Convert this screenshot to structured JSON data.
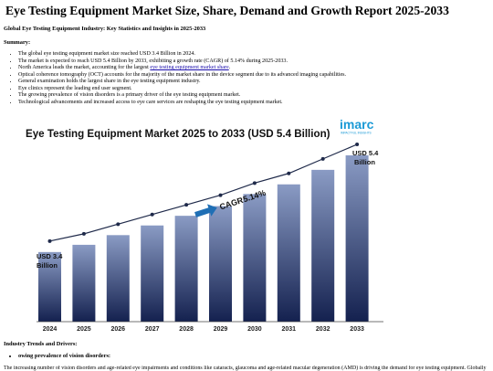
{
  "header": {
    "title": "Eye Testing Equipment Market Size, Share, Demand and Growth Report 2025-2033",
    "subtitle": "Global Eye Testing Equipment Industry: Key Statistics and Insights in 2025-2033",
    "summary_label": "Summary:"
  },
  "summary": {
    "b1": "The global eye testing equipment market size reached USD 3.4 Billion in 2024.",
    "b2": "The market is expected to reach USD 5.4 Billion by 2033, exhibiting a growth rate (CAGR) of 5.14% during 2025-2033.",
    "b3_prefix": "North America leads the market, accounting for the largest ",
    "b3_link": "eye testing equipment market share",
    "b3_suffix": ".",
    "b4": "Optical coherence tomography (OCT) accounts for the majority of the market share in the device segment due to its advanced imaging capabilities.",
    "b5": "General examination holds the largest share in the eye testing equipment industry.",
    "b6": "Eye clinics represent the leading end user segment.",
    "b7": "The growing prevalence of vision disorders is a primary driver of the eye testing equipment market.",
    "b8": "Technological advancements and increased access to eye care services are reshaping the eye testing equipment market."
  },
  "logo": {
    "text": "imarc",
    "tagline": "IMPACTFUL INSIGHTS"
  },
  "chart_data": {
    "type": "bar",
    "title": "Eye Testing Equipment Market 2025 to 2033 (USD 5.4 Billion)",
    "categories": [
      "2024",
      "2025",
      "2026",
      "2027",
      "2028",
      "2029",
      "2030",
      "2031",
      "2032",
      "2033"
    ],
    "values": [
      3.4,
      3.55,
      3.75,
      3.95,
      4.15,
      4.35,
      4.6,
      4.8,
      5.1,
      5.4
    ],
    "start_label_1": "USD 3.4",
    "start_label_2": "Billion",
    "end_label_1": "USD 5.4",
    "end_label_2": "Billion",
    "cagr_label": "CAGR",
    "cagr_value": "5.14%",
    "trend_line": true,
    "colors": {
      "bar_top": "#8a9bc4",
      "bar_bottom": "#14214f",
      "line": "#1f2a4a",
      "arrow": "#1f6fb5"
    }
  },
  "sections": {
    "trends_title": "Industry Trends and Drivers:",
    "sub1": "owing prevalence of vision disorders:",
    "cut_text": "The increasing number of vision disorders and age-related eye impairments and conditions like cataracts, glaucoma and age-related macular degeneration (AMD) is driving the demand for eye testing equipment. Globally"
  }
}
